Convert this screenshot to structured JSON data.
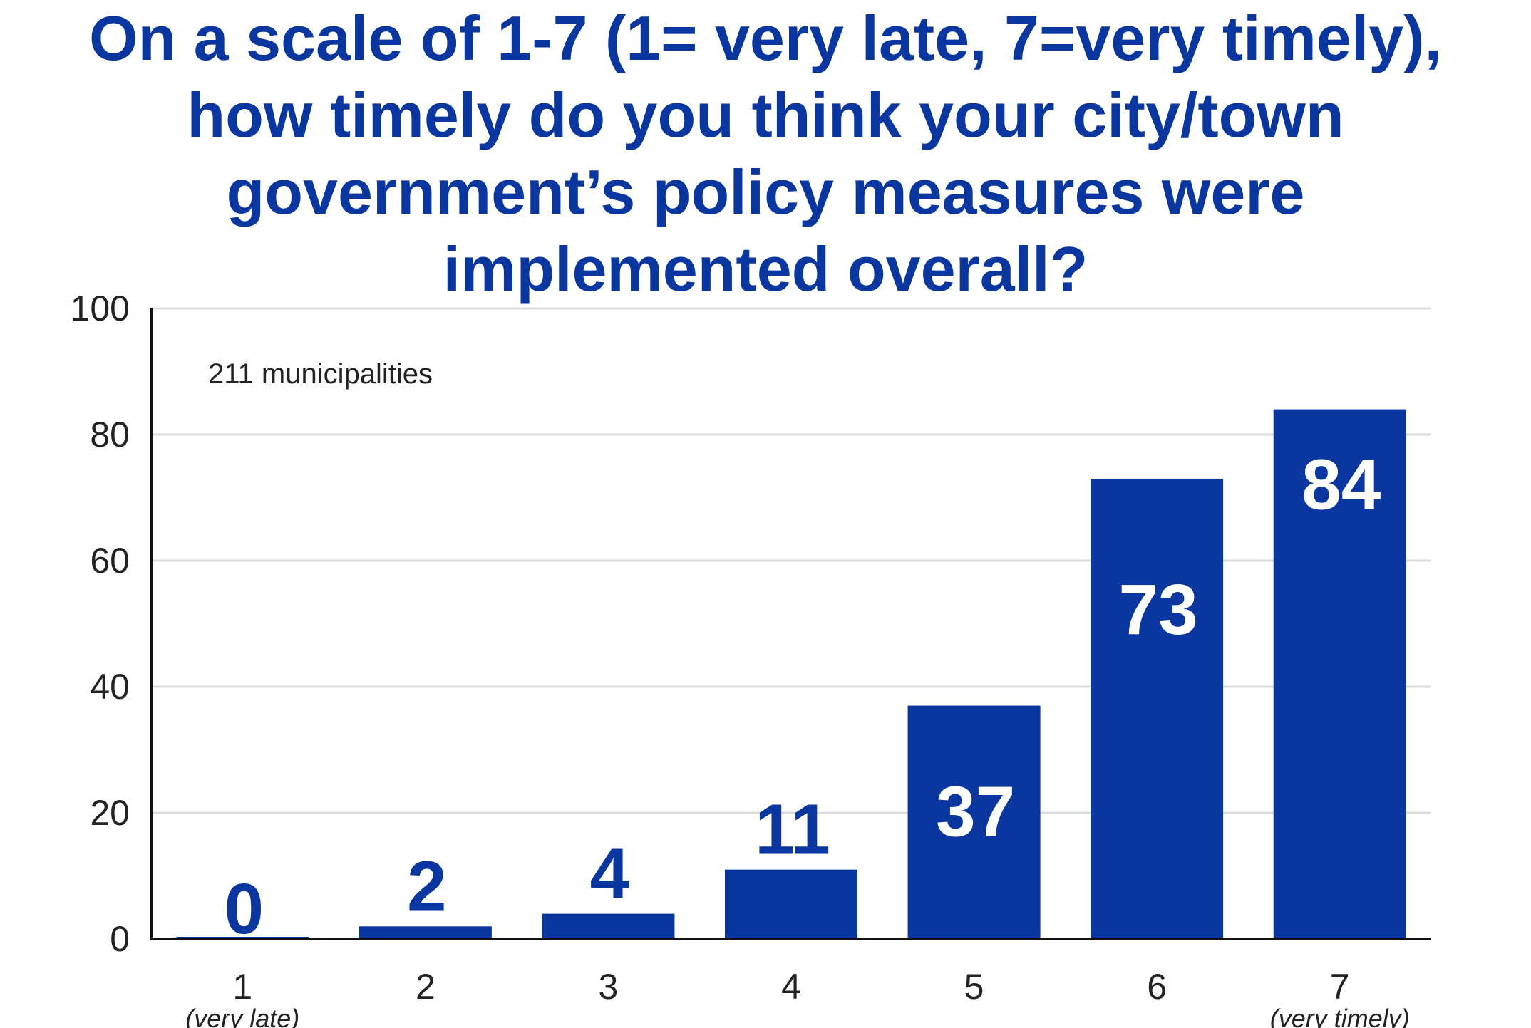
{
  "chart_data": {
    "type": "bar",
    "title": "On a scale of 1-7 (1= very late, 7=very timely), how timely do you think your city/town government’s policy measures were implemented overall?",
    "annotation": "211 municipalities",
    "categories": [
      "1",
      "2",
      "3",
      "4",
      "5",
      "6",
      "7"
    ],
    "category_notes": [
      "(very late)",
      "",
      "",
      "",
      "",
      "",
      "(very timely)"
    ],
    "values": [
      0,
      2,
      4,
      11,
      37,
      73,
      84
    ],
    "y_ticks": [
      0,
      20,
      40,
      60,
      80,
      100
    ],
    "ylim": [
      0,
      100
    ],
    "xlabel": "",
    "ylabel": "",
    "grid": true,
    "bar_color": "#0a36a0",
    "label_inside_color": "#ffffff",
    "label_outside_color": "#0a36a0"
  }
}
